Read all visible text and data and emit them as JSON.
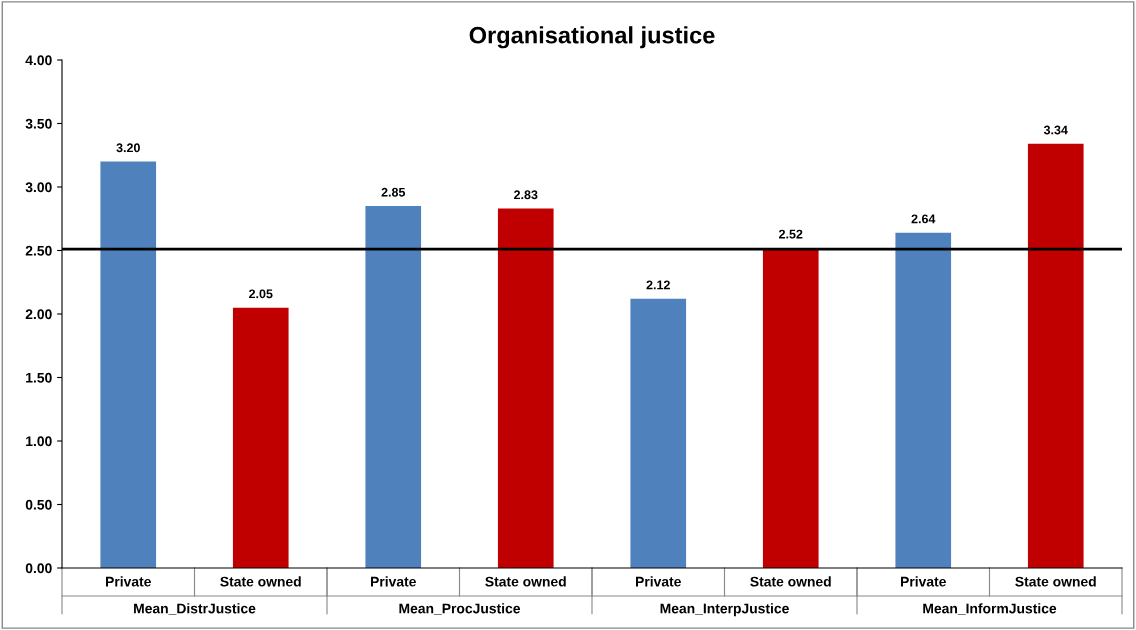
{
  "chart_data": {
    "type": "bar",
    "title": "Organisational justice",
    "categories": [
      "Private",
      "State owned",
      "Private",
      "State owned",
      "Private",
      "State owned",
      "Private",
      "State owned"
    ],
    "values": [
      3.2,
      2.05,
      2.85,
      2.83,
      2.12,
      2.52,
      2.64,
      3.34
    ],
    "value_labels": [
      "3.20",
      "2.05",
      "2.85",
      "2.83",
      "2.12",
      "2.52",
      "2.64",
      "3.34"
    ],
    "colors": [
      "#4f81bd",
      "#c00000",
      "#4f81bd",
      "#c00000",
      "#4f81bd",
      "#c00000",
      "#4f81bd",
      "#c00000"
    ],
    "annotations": [
      "Mean_DistrJustice",
      "Mean_ProcJustice",
      "Mean_InterpJustice",
      "Mean_InformJustice"
    ],
    "ylim": [
      0,
      4
    ],
    "yticks": [
      {
        "value": 0,
        "label": "0.00"
      },
      {
        "value": 0.5,
        "label": "0.50"
      },
      {
        "value": 1,
        "label": "1.00"
      },
      {
        "value": 1.5,
        "label": "1.50"
      },
      {
        "value": 2,
        "label": "2.00"
      },
      {
        "value": 2.5,
        "label": "2.50"
      },
      {
        "value": 3,
        "label": "3.00"
      },
      {
        "value": 3.5,
        "label": "3.50"
      },
      {
        "value": 4,
        "label": "4.00"
      }
    ],
    "ref_lines": [
      {
        "axis": "y",
        "value": 2.51,
        "color": "#000000"
      }
    ],
    "grid": false,
    "legend": false
  }
}
